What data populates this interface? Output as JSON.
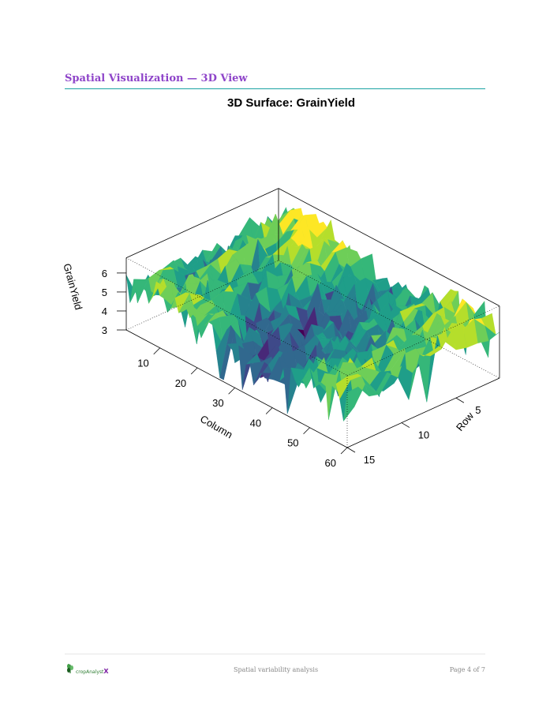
{
  "header": {
    "title": "Spatial Visualization — 3D View"
  },
  "footer": {
    "center_text": "Spatial variability analysis",
    "page_text": "Page 4 of 7",
    "logo_text": "cropAnalyst",
    "logo_x": "X"
  },
  "chart_data": {
    "type": "surface",
    "title": "3D Surface: GrainYield",
    "xlabel": "Column",
    "ylabel": "Row",
    "zlabel": "GrainYield",
    "x_range": [
      1,
      60
    ],
    "y_range": [
      1,
      15
    ],
    "z_range": [
      3,
      6.8
    ],
    "x_ticks": [
      10,
      20,
      30,
      40,
      50,
      60
    ],
    "y_ticks": [
      5,
      10,
      15
    ],
    "z_ticks": [
      3,
      4,
      5,
      6
    ],
    "colormap": "viridis",
    "grid": false
  }
}
